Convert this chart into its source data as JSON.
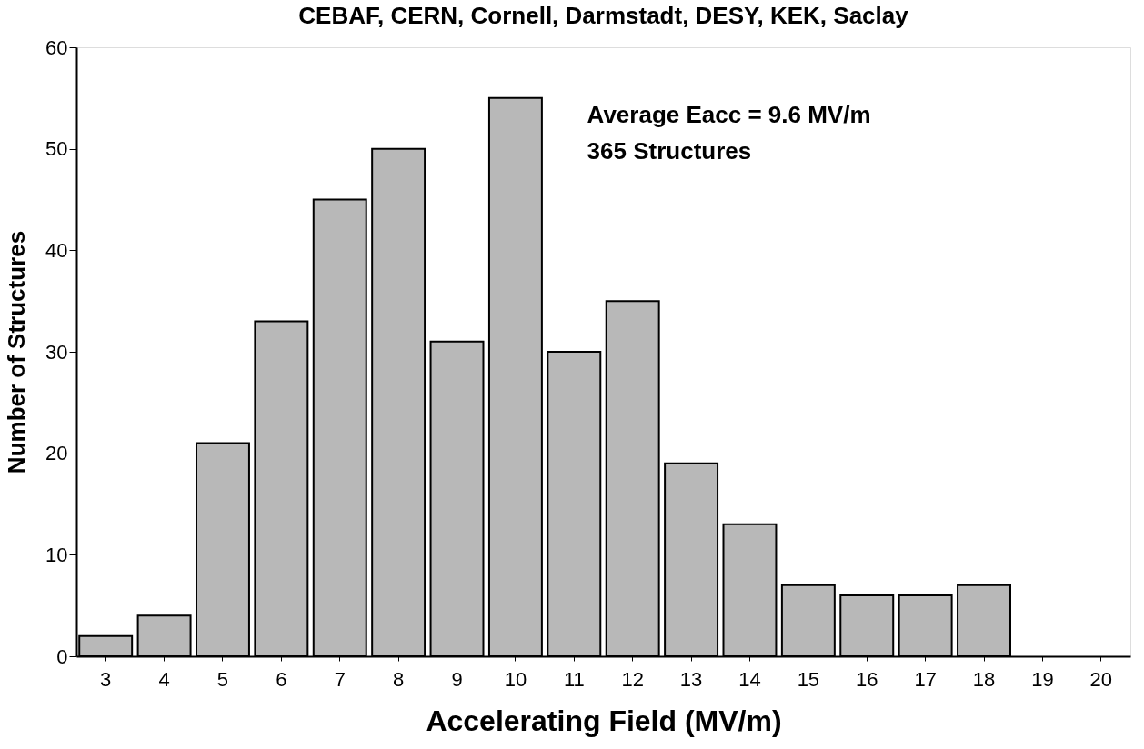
{
  "chart_data": {
    "type": "bar",
    "title": "CEBAF, CERN, Cornell, Darmstadt, DESY, KEK, Saclay",
    "xlabel": "Accelerating  Field  (MV/m)",
    "ylabel": "Number  of  Structures",
    "categories": [
      "3",
      "4",
      "5",
      "6",
      "7",
      "8",
      "9",
      "10",
      "11",
      "12",
      "13",
      "14",
      "15",
      "16",
      "17",
      "18",
      "19",
      "20"
    ],
    "values": [
      2,
      4,
      21,
      33,
      45,
      50,
      31,
      55,
      30,
      35,
      19,
      13,
      7,
      6,
      6,
      7,
      null,
      null
    ],
    "color": "#b8b8b8",
    "ylim": [
      0,
      60
    ],
    "yticks": [
      0,
      10,
      20,
      30,
      40,
      50,
      60
    ],
    "grid": false,
    "annotations": [
      "Average  Eacc  =  9.6  MV/m",
      "365   Structures"
    ]
  }
}
